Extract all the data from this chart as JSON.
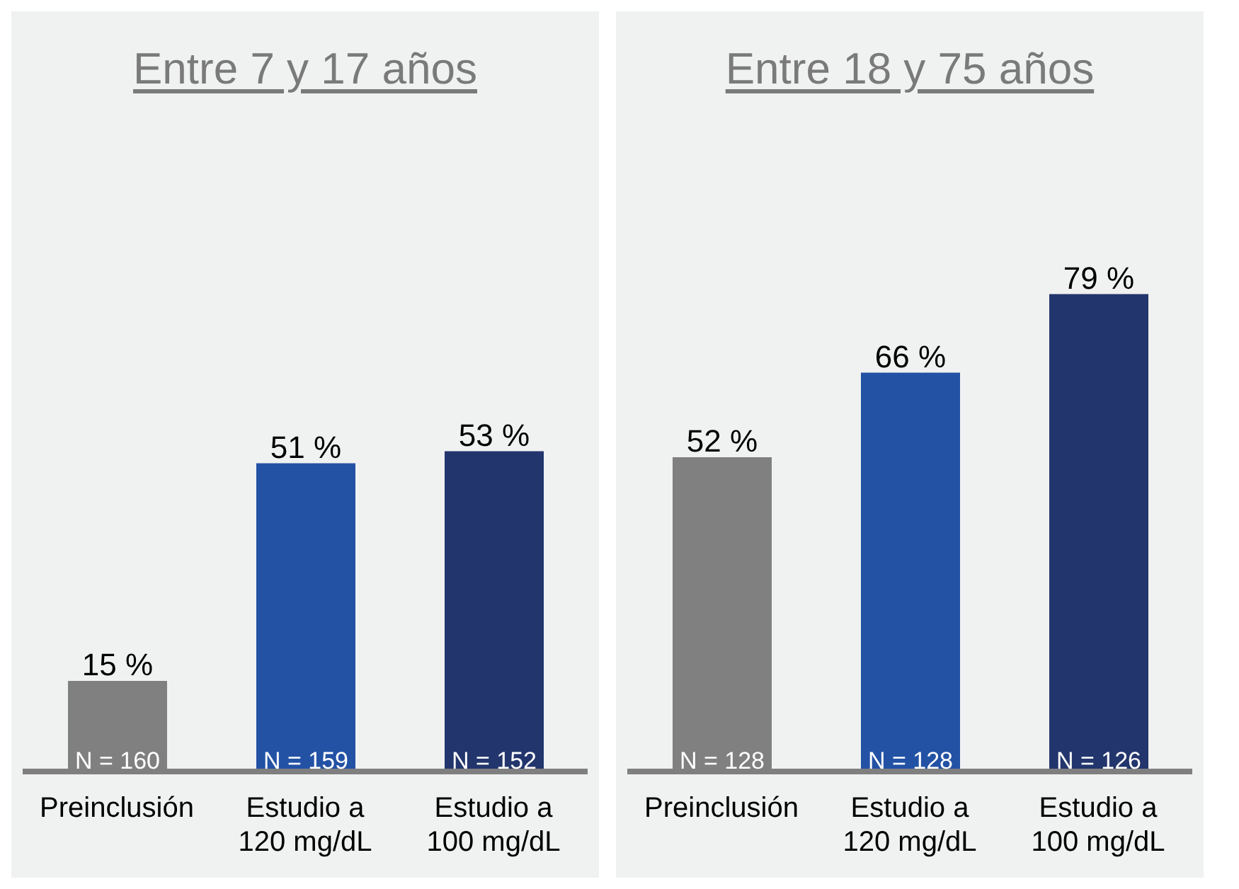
{
  "chart_data": [
    {
      "type": "bar",
      "title": "Entre 7 y 17 años",
      "categories": [
        "Preinclusión",
        "Estudio a\n120 mg/dL",
        "Estudio a\n100 mg/dL"
      ],
      "values": [
        15,
        51,
        53
      ],
      "colors": [
        "#808080",
        "#2352a5",
        "#22356c"
      ],
      "value_labels": [
        "15 %",
        "51 %",
        "53 %"
      ],
      "annotations": [
        "N = 160",
        "N = 159",
        "N = 152"
      ]
    },
    {
      "type": "bar",
      "title": "Entre 18 y 75 años",
      "categories": [
        "Preinclusión",
        "Estudio a\n120 mg/dL",
        "Estudio a\n100 mg/dL"
      ],
      "values": [
        52,
        66,
        79
      ],
      "colors": [
        "#808080",
        "#2352a5",
        "#22356c"
      ],
      "value_labels": [
        "52 %",
        "66 %",
        "79 %"
      ],
      "annotations": [
        "N = 128",
        "N = 128",
        "N = 126"
      ]
    }
  ]
}
